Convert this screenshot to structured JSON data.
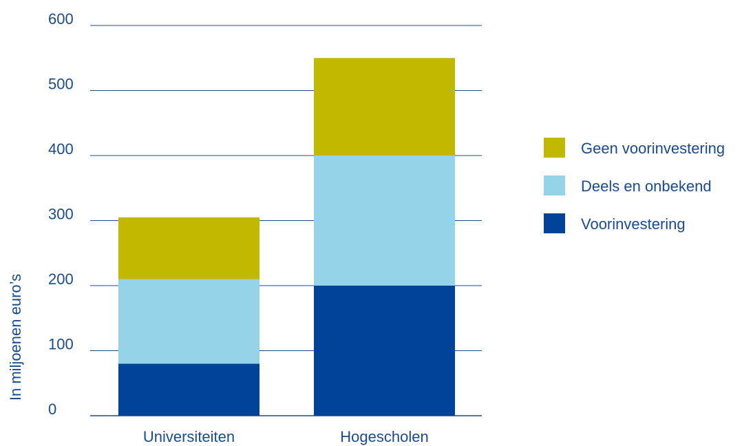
{
  "chart_data": {
    "type": "bar",
    "stacked": true,
    "title": "",
    "xlabel": "",
    "ylabel": "In miljoenen euro’s",
    "ylim": [
      0,
      600
    ],
    "yticks": [
      0,
      100,
      200,
      300,
      400,
      500,
      600
    ],
    "categories": [
      "Universiteiten",
      "Hogescholen"
    ],
    "series": [
      {
        "name": "Voorinvestering",
        "color": "#00449a",
        "values": [
          80,
          200
        ]
      },
      {
        "name": "Deels en onbekend",
        "color": "#95d3e8",
        "values": [
          130,
          200
        ]
      },
      {
        "name": "Geen voorinvestering",
        "color": "#c3b800",
        "values": [
          95,
          150
        ]
      }
    ],
    "legend": {
      "placement": "right",
      "order": [
        "Geen voorinvestering",
        "Deels en onbekend",
        "Voorinvestering"
      ]
    },
    "grid": true,
    "colors": {
      "text": "#1a4a8f",
      "grid": "#1a4a8f"
    }
  }
}
